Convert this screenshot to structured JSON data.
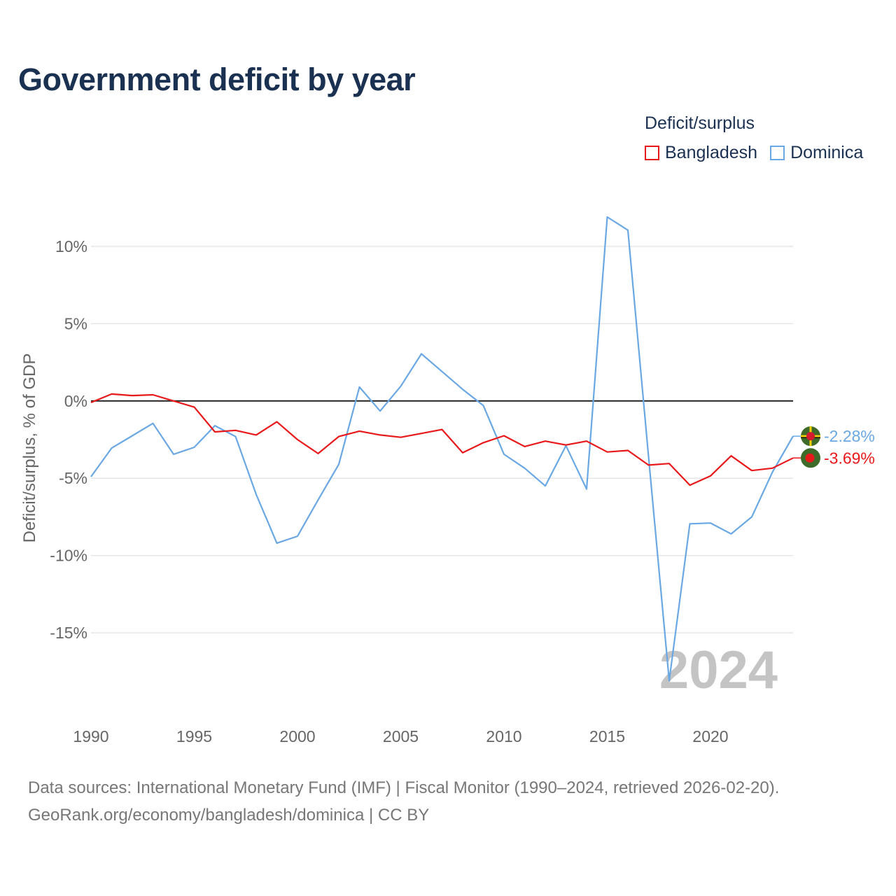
{
  "title": "Government deficit by year",
  "legend": {
    "title": "Deficit/surplus",
    "items": [
      {
        "label": "Bangladesh",
        "color": "#e8191b"
      },
      {
        "label": "Dominica",
        "color": "#6aa8e4"
      }
    ]
  },
  "footer": {
    "line1": "Data sources: International Monetary Fund (IMF) | Fiscal Monitor (1990–2024, retrieved 2026-02-20).",
    "line2": "GeoRank.org/economy/bangladesh/dominica | CC BY"
  },
  "chart_data": {
    "type": "line",
    "title": "Government deficit by year",
    "xlabel": "",
    "ylabel": "Deficit/surplus, % of GDP",
    "xlim": [
      1990,
      2024
    ],
    "ylim": [
      -20,
      14
    ],
    "x_ticks": [
      1990,
      1995,
      2000,
      2005,
      2010,
      2015,
      2020
    ],
    "y_ticks": [
      {
        "value": 10,
        "label": "10%"
      },
      {
        "value": 5,
        "label": "5%"
      },
      {
        "value": 0,
        "label": "0%"
      },
      {
        "value": -5,
        "label": "-5%"
      },
      {
        "value": -10,
        "label": "-10%"
      },
      {
        "value": -15,
        "label": "-15%"
      }
    ],
    "watermark_year": "2024",
    "x": [
      1990,
      1991,
      1992,
      1993,
      1994,
      1995,
      1996,
      1997,
      1998,
      1999,
      2000,
      2001,
      2002,
      2003,
      2004,
      2005,
      2006,
      2007,
      2008,
      2009,
      2010,
      2011,
      2012,
      2013,
      2014,
      2015,
      2016,
      2017,
      2018,
      2019,
      2020,
      2021,
      2022,
      2023,
      2024
    ],
    "series": [
      {
        "name": "Bangladesh",
        "color": "#e8191b",
        "end_label": "-3.69%",
        "values": [
          -0.1,
          0.45,
          0.35,
          0.4,
          0.0,
          -0.4,
          -2.0,
          -1.9,
          -2.2,
          -1.35,
          -2.5,
          -3.4,
          -2.3,
          -1.95,
          -2.2,
          -2.35,
          -2.1,
          -1.85,
          -3.35,
          -2.7,
          -2.25,
          -2.95,
          -2.6,
          -2.85,
          -2.6,
          -3.3,
          -3.2,
          -4.15,
          -4.05,
          -5.45,
          -4.85,
          -3.55,
          -4.5,
          -4.35,
          -3.69
        ]
      },
      {
        "name": "Dominica",
        "color": "#6aa8e4",
        "end_label": "-2.28%",
        "values": [
          -4.9,
          -3.05,
          -2.25,
          -1.45,
          -3.45,
          -3.0,
          -1.6,
          -2.3,
          -6.05,
          -9.2,
          -8.75,
          -6.4,
          -4.1,
          0.9,
          -0.65,
          0.95,
          3.05,
          1.9,
          0.75,
          -0.3,
          -3.45,
          -4.35,
          -5.5,
          -2.9,
          -5.7,
          11.9,
          11.05,
          -3.6,
          -18.1,
          -7.95,
          -7.9,
          -8.6,
          -7.5,
          -4.6,
          -2.28
        ]
      }
    ]
  }
}
